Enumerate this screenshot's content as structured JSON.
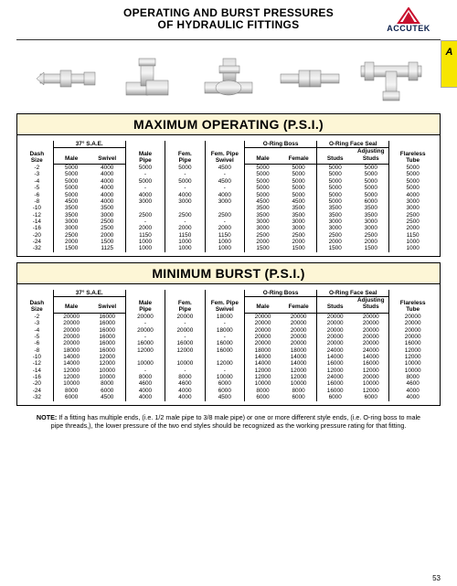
{
  "header": {
    "line1": "OPERATING AND BURST PRESSURES",
    "line2": "OF HYDRAULIC FITTINGS",
    "brand": "ACCUTEK"
  },
  "sideTab": "A",
  "pageNumber": "53",
  "sections": [
    {
      "title": "MAXIMUM OPERATING (P.S.I.)"
    },
    {
      "title": "MINIMUM BURST (P.S.I.)"
    }
  ],
  "columns": {
    "dash": "Dash\nSize",
    "sae": "37° S.A.E.",
    "sae_male": "Male",
    "sae_swivel": "Swivel",
    "male_pipe": "Male\nPipe",
    "fem_pipe": "Fem.\nPipe",
    "fem_pipe_swivel": "Fem. Pipe\nSwivel",
    "oring_boss": "O-Ring Boss",
    "ob_male": "Male",
    "ob_female": "Female",
    "ofs": "O-Ring Face Seal",
    "ofs_studs": "Studs",
    "ofs_adj": "Adjusting\nStuds",
    "flareless": "Flareless\nTube"
  },
  "operating": [
    {
      "d": "-2",
      "sm": "5000",
      "ss": "4000",
      "mp": "5000",
      "fp": "5000",
      "fs": "4500",
      "obM": "5000",
      "obF": "5000",
      "st": "5000",
      "as": "5000",
      "fl": "5000"
    },
    {
      "d": "-3",
      "sm": "5000",
      "ss": "4000",
      "mp": "-",
      "fp": "-",
      "fs": "-",
      "obM": "5000",
      "obF": "5000",
      "st": "5000",
      "as": "5000",
      "fl": "5000"
    },
    {
      "d": "-4",
      "sm": "5000",
      "ss": "4000",
      "mp": "5000",
      "fp": "5000",
      "fs": "4500",
      "obM": "5000",
      "obF": "5000",
      "st": "5000",
      "as": "5000",
      "fl": "5000"
    },
    {
      "d": "-5",
      "sm": "5000",
      "ss": "4000",
      "mp": "-",
      "fp": "-",
      "fs": "-",
      "obM": "5000",
      "obF": "5000",
      "st": "5000",
      "as": "5000",
      "fl": "5000"
    },
    {
      "d": "-6",
      "sm": "5000",
      "ss": "4000",
      "mp": "4000",
      "fp": "4000",
      "fs": "4000",
      "obM": "5000",
      "obF": "5000",
      "st": "5000",
      "as": "5000",
      "fl": "4000"
    },
    {
      "d": "-8",
      "sm": "4500",
      "ss": "4000",
      "mp": "3000",
      "fp": "3000",
      "fs": "3000",
      "obM": "4500",
      "obF": "4500",
      "st": "5000",
      "as": "6000",
      "fl": "3000"
    },
    {
      "d": "-10",
      "sm": "3500",
      "ss": "3500",
      "mp": "",
      "fp": "",
      "fs": "",
      "obM": "3500",
      "obF": "3500",
      "st": "3500",
      "as": "3500",
      "fl": "3000"
    },
    {
      "d": "-12",
      "sm": "3500",
      "ss": "3000",
      "mp": "2500",
      "fp": "2500",
      "fs": "2500",
      "obM": "3500",
      "obF": "3500",
      "st": "3500",
      "as": "3500",
      "fl": "2500"
    },
    {
      "d": "-14",
      "sm": "3000",
      "ss": "2500",
      "mp": "-",
      "fp": "-",
      "fs": "-",
      "obM": "3000",
      "obF": "3000",
      "st": "3000",
      "as": "3000",
      "fl": "2500"
    },
    {
      "d": "-16",
      "sm": "3000",
      "ss": "2500",
      "mp": "2000",
      "fp": "2000",
      "fs": "2000",
      "obM": "3000",
      "obF": "3000",
      "st": "3000",
      "as": "3000",
      "fl": "2000"
    },
    {
      "d": "-20",
      "sm": "2500",
      "ss": "2000",
      "mp": "1150",
      "fp": "1150",
      "fs": "1150",
      "obM": "2500",
      "obF": "2500",
      "st": "2500",
      "as": "2500",
      "fl": "1150"
    },
    {
      "d": "-24",
      "sm": "2000",
      "ss": "1500",
      "mp": "1000",
      "fp": "1000",
      "fs": "1000",
      "obM": "2000",
      "obF": "2000",
      "st": "2000",
      "as": "2000",
      "fl": "1000"
    },
    {
      "d": "-32",
      "sm": "1500",
      "ss": "1125",
      "mp": "1000",
      "fp": "1000",
      "fs": "1000",
      "obM": "1500",
      "obF": "1500",
      "st": "1500",
      "as": "1500",
      "fl": "1000"
    }
  ],
  "burst": [
    {
      "d": "-2",
      "sm": "20000",
      "ss": "16000",
      "mp": "20000",
      "fp": "20000",
      "fs": "18000",
      "obM": "20000",
      "obF": "20000",
      "st": "20000",
      "as": "20000",
      "fl": "20000"
    },
    {
      "d": "-3",
      "sm": "20000",
      "ss": "16000",
      "mp": "-",
      "fp": "-",
      "fs": "-",
      "obM": "20000",
      "obF": "20000",
      "st": "20000",
      "as": "20000",
      "fl": "20000"
    },
    {
      "d": "-4",
      "sm": "20000",
      "ss": "16000",
      "mp": "20000",
      "fp": "20000",
      "fs": "18000",
      "obM": "20000",
      "obF": "20000",
      "st": "20000",
      "as": "20000",
      "fl": "20000"
    },
    {
      "d": "-5",
      "sm": "20000",
      "ss": "16000",
      "mp": "-",
      "fp": "-",
      "fs": "-",
      "obM": "20000",
      "obF": "20000",
      "st": "20000",
      "as": "20000",
      "fl": "20000"
    },
    {
      "d": "-6",
      "sm": "20000",
      "ss": "16000",
      "mp": "16000",
      "fp": "16000",
      "fs": "16000",
      "obM": "20000",
      "obF": "20000",
      "st": "20000",
      "as": "20000",
      "fl": "16000"
    },
    {
      "d": "-8",
      "sm": "18000",
      "ss": "16000",
      "mp": "12000",
      "fp": "12000",
      "fs": "16000",
      "obM": "18000",
      "obF": "18000",
      "st": "24000",
      "as": "24000",
      "fl": "12000"
    },
    {
      "d": "-10",
      "sm": "14000",
      "ss": "12000",
      "mp": "",
      "fp": "",
      "fs": "",
      "obM": "14000",
      "obF": "14000",
      "st": "14000",
      "as": "14000",
      "fl": "12000"
    },
    {
      "d": "-12",
      "sm": "14000",
      "ss": "12000",
      "mp": "10000",
      "fp": "10000",
      "fs": "12000",
      "obM": "14000",
      "obF": "14000",
      "st": "16000",
      "as": "16000",
      "fl": "10000"
    },
    {
      "d": "-14",
      "sm": "12000",
      "ss": "10000",
      "mp": "-",
      "fp": "-",
      "fs": "-",
      "obM": "12000",
      "obF": "12000",
      "st": "12000",
      "as": "12000",
      "fl": "10000"
    },
    {
      "d": "-16",
      "sm": "12000",
      "ss": "10000",
      "mp": "8000",
      "fp": "8000",
      "fs": "10000",
      "obM": "12000",
      "obF": "12000",
      "st": "24000",
      "as": "20000",
      "fl": "8000"
    },
    {
      "d": "-20",
      "sm": "10000",
      "ss": "8000",
      "mp": "4600",
      "fp": "4600",
      "fs": "6000",
      "obM": "10000",
      "obF": "10000",
      "st": "16000",
      "as": "10000",
      "fl": "4600"
    },
    {
      "d": "-24",
      "sm": "8000",
      "ss": "6000",
      "mp": "4000",
      "fp": "4000",
      "fs": "6000",
      "obM": "8000",
      "obF": "8000",
      "st": "16000",
      "as": "12000",
      "fl": "4000"
    },
    {
      "d": "-32",
      "sm": "6000",
      "ss": "4500",
      "mp": "4000",
      "fp": "4000",
      "fs": "4500",
      "obM": "6000",
      "obF": "6000",
      "st": "6000",
      "as": "6000",
      "fl": "4000"
    }
  ],
  "note": {
    "prefix": "NOTE:",
    "text": "If a fitting has multiple ends, (i.e. 1/2 male pipe to 3/8 male pipe) or one or more different style ends, (i.e. O-ring boss to male pipe threads,), the lower pressure of the two end styles should be recognized as the working pressure rating for that fitting."
  }
}
